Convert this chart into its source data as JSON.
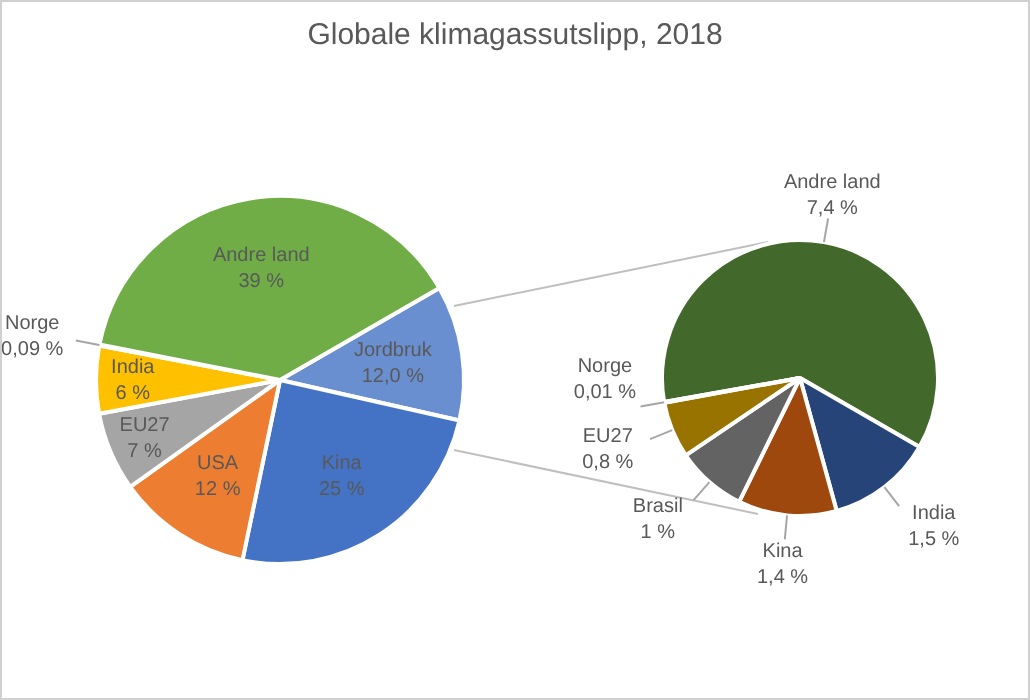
{
  "chart_data": [
    {
      "type": "pie",
      "title": "Globale klimagassutslipp, 2018",
      "categories": [
        "Jordbruk",
        "Kina",
        "USA",
        "EU27",
        "India",
        "Norge",
        "Andre land"
      ],
      "values": [
        12.0,
        25,
        12,
        7,
        6,
        0.09,
        39
      ],
      "value_labels": [
        "12,0 %",
        "25 %",
        "12 %",
        "7 %",
        "6 %",
        "0,09 %",
        "39 %"
      ],
      "colors": [
        "#6a8fd0",
        "#4472c4",
        "#ed7d31",
        "#a5a5a5",
        "#ffc000",
        "#5b9bd5",
        "#70ad47"
      ]
    },
    {
      "type": "pie",
      "categories": [
        "Andre land",
        "India",
        "Kina",
        "Brasil",
        "EU27",
        "Norge"
      ],
      "values": [
        7.4,
        1.5,
        1.4,
        1,
        0.8,
        0.01
      ],
      "value_labels": [
        "7,4 %",
        "1,5 %",
        "1,4 %",
        "1 %",
        "0,8 %",
        "0,01 %"
      ],
      "colors": [
        "#43682b",
        "#264478",
        "#9e480e",
        "#636363",
        "#997300",
        "#255e91"
      ]
    }
  ]
}
